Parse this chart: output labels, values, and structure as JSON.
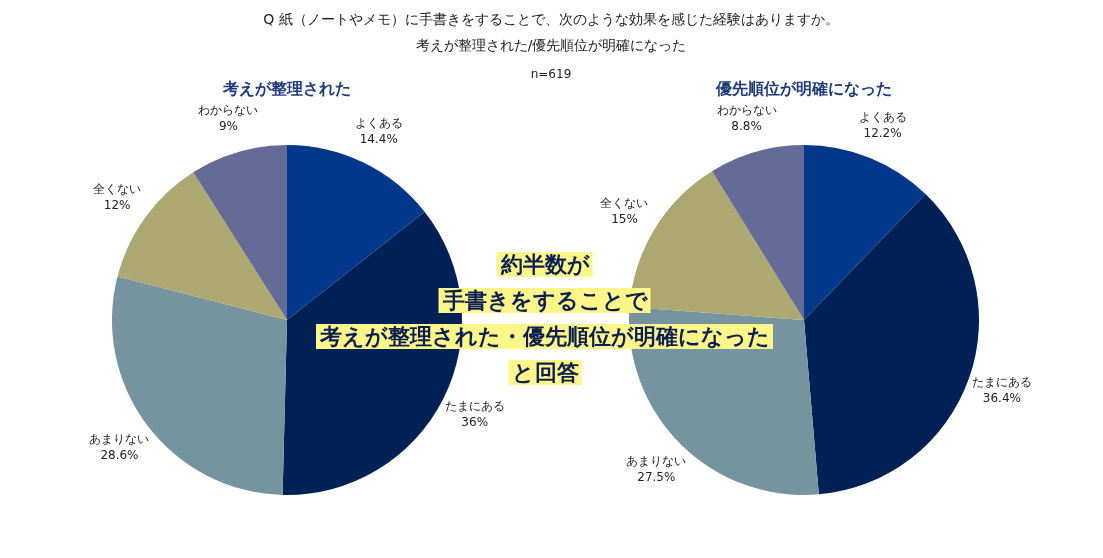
{
  "chart_data": [
    {
      "type": "pie",
      "title": "考えが整理された",
      "categories": [
        "よくある",
        "たまにある",
        "あまりない",
        "全くない",
        "わからない"
      ],
      "values": [
        14.4,
        36,
        28.6,
        12,
        9
      ],
      "value_labels": [
        "14.4%",
        "36%",
        "28.6%",
        "12%",
        "9%"
      ],
      "colors": [
        "#02378c",
        "#002155",
        "#7693a0",
        "#ada771",
        "#646b97"
      ],
      "annotations": [
        "Q 紙（ノートやメモ）に手書きをすることで、次のような効果を感じた経験はありますか。",
        "考えが整理された/優先順位が明確になった",
        "n=619",
        "約半数が",
        "手書きをすることで",
        "考えが整理された・優先順位が明確になった",
        "と回答"
      ]
    },
    {
      "type": "pie",
      "title": "優先順位が明確になった",
      "categories": [
        "よくある",
        "たまにある",
        "あまりない",
        "全くない",
        "わからない"
      ],
      "values": [
        12.2,
        36.4,
        27.5,
        15,
        8.8
      ],
      "value_labels": [
        "12.2%",
        "36.4%",
        "27.5%",
        "15%",
        "8.8%"
      ],
      "colors": [
        "#02378c",
        "#002155",
        "#7693a0",
        "#ada771",
        "#646b97"
      ]
    }
  ]
}
